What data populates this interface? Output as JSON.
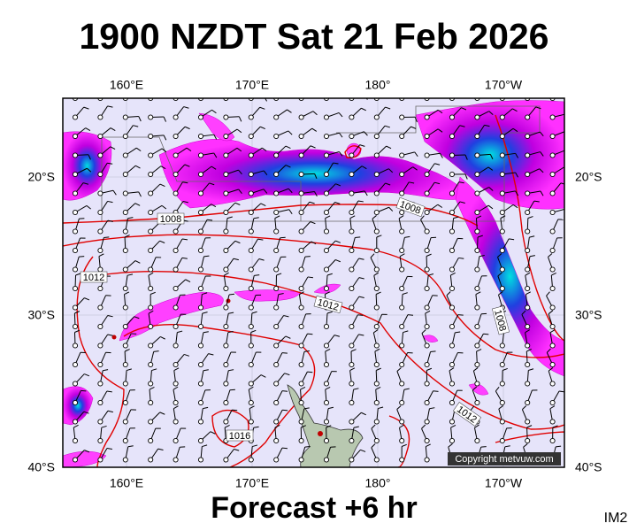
{
  "header": {
    "title": "1900 NZDT Sat 21 Feb 2026"
  },
  "map": {
    "lon_labels": [
      "160°E",
      "170°E",
      "180°",
      "170°W"
    ],
    "lat_labels": [
      "20°S",
      "30°S",
      "40°S"
    ],
    "isobar_labels": [
      "1008",
      "1012",
      "1012",
      "1008",
      "1008",
      "1012",
      "1016"
    ],
    "copyright": "Copyright metvuw.com"
  },
  "footer": {
    "forecast": "Forecast +6 hr",
    "code": "IM2"
  }
}
